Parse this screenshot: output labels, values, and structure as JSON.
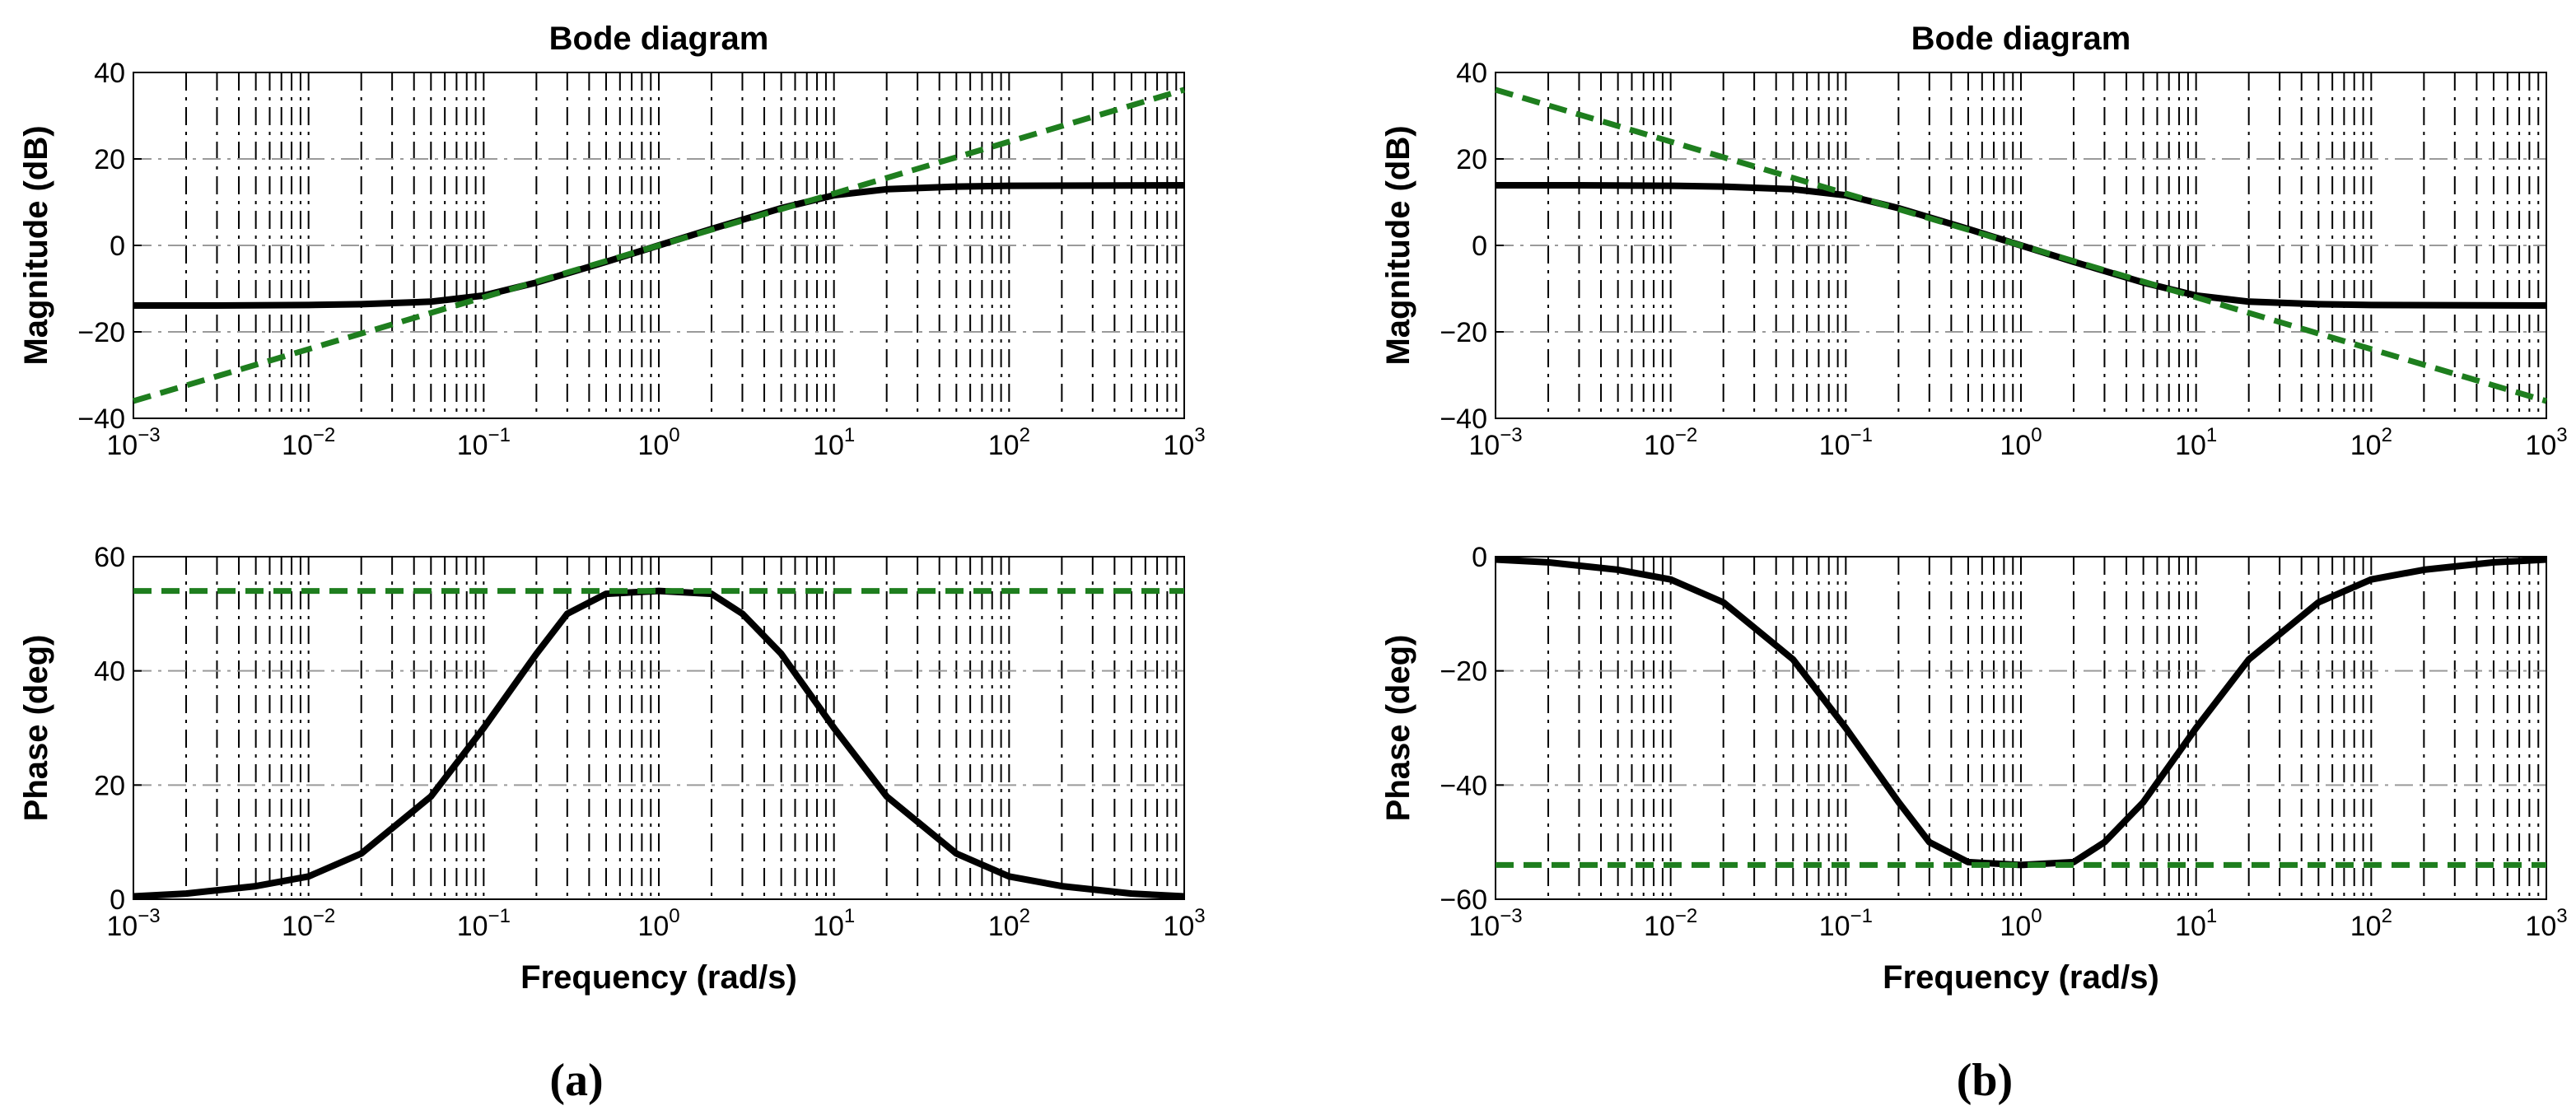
{
  "captions": [
    "(a)",
    "(b)"
  ],
  "colors": {
    "response": "#000000",
    "asymptote": "#1e7e1e"
  },
  "chart_data": [
    {
      "id": "a-magnitude",
      "type": "line",
      "title": "Bode diagram",
      "xlabel": "",
      "ylabel": "Magnitude (dB)",
      "xscale": "log",
      "xlim": [
        0.001,
        1000
      ],
      "ylim": [
        -40,
        40
      ],
      "xticks": [
        {
          "b": "10",
          "e": "−3"
        },
        {
          "b": "10",
          "e": "−2"
        },
        {
          "b": "10",
          "e": "−1"
        },
        {
          "b": "10",
          "e": "0"
        },
        {
          "b": "10",
          "e": "1"
        },
        {
          "b": "10",
          "e": "2"
        },
        {
          "b": "10",
          "e": "3"
        }
      ],
      "yticks": [
        {
          "v": -40,
          "t": "−40"
        },
        {
          "v": -20,
          "t": "−20"
        },
        {
          "v": 0,
          "t": "0"
        },
        {
          "v": 20,
          "t": "20"
        },
        {
          "v": 40,
          "t": "40"
        }
      ],
      "grid": true,
      "series": [
        {
          "name": "Magnitude",
          "style": "solid",
          "color": "#000000",
          "x": [
            0.001,
            0.003,
            0.01,
            0.02,
            0.05,
            0.1,
            0.2,
            0.5,
            1,
            2,
            5,
            10,
            20,
            50,
            100,
            1000
          ],
          "y": [
            -13.9,
            -13.9,
            -13.8,
            -13.6,
            -13.0,
            -11.6,
            -8.6,
            -3.8,
            0,
            3.8,
            8.6,
            11.6,
            13.0,
            13.6,
            13.8,
            13.9
          ]
        },
        {
          "name": "Asymptote",
          "style": "dashed",
          "color": "#1e7e1e",
          "x": [
            0.001,
            1000
          ],
          "y": [
            -36,
            36
          ]
        }
      ]
    },
    {
      "id": "a-phase",
      "type": "line",
      "title": "",
      "xlabel": "Frequency (rad/s)",
      "ylabel": "Phase (deg)",
      "xscale": "log",
      "xlim": [
        0.001,
        1000
      ],
      "ylim": [
        0,
        60
      ],
      "xticks": [
        {
          "b": "10",
          "e": "−3"
        },
        {
          "b": "10",
          "e": "−2"
        },
        {
          "b": "10",
          "e": "−1"
        },
        {
          "b": "10",
          "e": "0"
        },
        {
          "b": "10",
          "e": "1"
        },
        {
          "b": "10",
          "e": "2"
        },
        {
          "b": "10",
          "e": "3"
        }
      ],
      "yticks": [
        {
          "v": 0,
          "t": "0"
        },
        {
          "v": 20,
          "t": "20"
        },
        {
          "v": 40,
          "t": "40"
        },
        {
          "v": 60,
          "t": "60"
        }
      ],
      "grid": true,
      "series": [
        {
          "name": "Phase",
          "style": "solid",
          "color": "#000000",
          "x": [
            0.001,
            0.002,
            0.005,
            0.01,
            0.02,
            0.05,
            0.1,
            0.2,
            0.3,
            0.5,
            1,
            2,
            3,
            5,
            10,
            20,
            50,
            100,
            200,
            500,
            1000
          ],
          "y": [
            0.5,
            1.0,
            2.3,
            4.0,
            8.0,
            18.0,
            30.0,
            43.0,
            50.0,
            53.5,
            54.0,
            53.5,
            50.0,
            43.0,
            30.0,
            18.0,
            8.0,
            4.0,
            2.3,
            1.0,
            0.5
          ]
        },
        {
          "name": "Max phase",
          "style": "dashed",
          "color": "#1e7e1e",
          "x": [
            0.001,
            1000
          ],
          "y": [
            54,
            54
          ]
        }
      ]
    },
    {
      "id": "b-magnitude",
      "type": "line",
      "title": "Bode diagram",
      "xlabel": "",
      "ylabel": "Magnitude (dB)",
      "xscale": "log",
      "xlim": [
        0.001,
        1000
      ],
      "ylim": [
        -40,
        40
      ],
      "xticks": [
        {
          "b": "10",
          "e": "−3"
        },
        {
          "b": "10",
          "e": "−2"
        },
        {
          "b": "10",
          "e": "−1"
        },
        {
          "b": "10",
          "e": "0"
        },
        {
          "b": "10",
          "e": "1"
        },
        {
          "b": "10",
          "e": "2"
        },
        {
          "b": "10",
          "e": "3"
        }
      ],
      "yticks": [
        {
          "v": -40,
          "t": "−40"
        },
        {
          "v": -20,
          "t": "−20"
        },
        {
          "v": 0,
          "t": "0"
        },
        {
          "v": 20,
          "t": "20"
        },
        {
          "v": 40,
          "t": "40"
        }
      ],
      "grid": true,
      "series": [
        {
          "name": "Magnitude",
          "style": "solid",
          "color": "#000000",
          "x": [
            0.001,
            0.003,
            0.01,
            0.02,
            0.05,
            0.1,
            0.2,
            0.5,
            1,
            2,
            5,
            10,
            20,
            50,
            100,
            1000
          ],
          "y": [
            13.9,
            13.9,
            13.8,
            13.6,
            13.0,
            11.6,
            8.6,
            3.8,
            0,
            -3.8,
            -8.6,
            -11.6,
            -13.0,
            -13.6,
            -13.8,
            -13.9
          ]
        },
        {
          "name": "Asymptote",
          "style": "dashed",
          "color": "#1e7e1e",
          "x": [
            0.001,
            1000
          ],
          "y": [
            36,
            -36
          ]
        }
      ]
    },
    {
      "id": "b-phase",
      "type": "line",
      "title": "",
      "xlabel": "Frequency (rad/s)",
      "ylabel": "Phase (deg)",
      "xscale": "log",
      "xlim": [
        0.001,
        1000
      ],
      "ylim": [
        -60,
        0
      ],
      "xticks": [
        {
          "b": "10",
          "e": "−3"
        },
        {
          "b": "10",
          "e": "−2"
        },
        {
          "b": "10",
          "e": "−1"
        },
        {
          "b": "10",
          "e": "0"
        },
        {
          "b": "10",
          "e": "1"
        },
        {
          "b": "10",
          "e": "2"
        },
        {
          "b": "10",
          "e": "3"
        }
      ],
      "yticks": [
        {
          "v": -60,
          "t": "−60"
        },
        {
          "v": -40,
          "t": "−40"
        },
        {
          "v": -20,
          "t": "−20"
        },
        {
          "v": 0,
          "t": "0"
        }
      ],
      "grid": true,
      "series": [
        {
          "name": "Phase",
          "style": "solid",
          "color": "#000000",
          "x": [
            0.001,
            0.002,
            0.005,
            0.01,
            0.02,
            0.05,
            0.1,
            0.2,
            0.3,
            0.5,
            1,
            2,
            3,
            5,
            10,
            20,
            50,
            100,
            200,
            500,
            1000
          ],
          "y": [
            -0.5,
            -1.0,
            -2.3,
            -4.0,
            -8.0,
            -18.0,
            -30.0,
            -43.0,
            -50.0,
            -53.5,
            -54.0,
            -53.5,
            -50.0,
            -43.0,
            -30.0,
            -18.0,
            -8.0,
            -4.0,
            -2.3,
            -1.0,
            -0.5
          ]
        },
        {
          "name": "Max phase",
          "style": "dashed",
          "color": "#1e7e1e",
          "x": [
            0.001,
            1000
          ],
          "y": [
            -54,
            -54
          ]
        }
      ]
    }
  ]
}
